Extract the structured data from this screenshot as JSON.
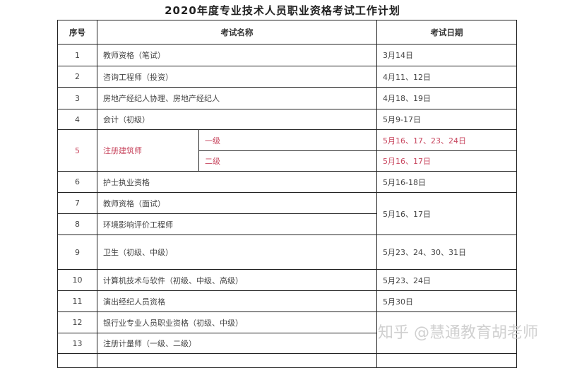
{
  "title": "2020年度专业技术人员职业资格考试工作计划",
  "headers": {
    "no": "序号",
    "name": "考试名称",
    "date": "考试日期"
  },
  "rows": [
    {
      "no": "1",
      "name": "教师资格（笔试）",
      "date": "3月14日"
    },
    {
      "no": "2",
      "name": "咨询工程师（投资）",
      "date": "4月11、12日"
    },
    {
      "no": "3",
      "name": "房地产经纪人协理、房地产经纪人",
      "date": "4月18、19日"
    },
    {
      "no": "4",
      "name": "会计（初级）",
      "date": "5月9-17日"
    },
    {
      "no": "5",
      "name": "注册建筑师",
      "sub": [
        {
          "level": "一级",
          "date": "5月16、17、23、24日"
        },
        {
          "level": "二级",
          "date": "5月16、17日"
        }
      ]
    },
    {
      "no": "6",
      "name": "护士执业资格",
      "date": "5月16-18日"
    },
    {
      "no": "7",
      "name": "教师资格（面试）",
      "date": "5月16、17日"
    },
    {
      "no": "8",
      "name": "环境影响评价工程师"
    },
    {
      "no": "9",
      "name": "卫生（初级、中级）",
      "date": "5月23、24、30、31日"
    },
    {
      "no": "10",
      "name": "计算机技术与软件（初级、中级、高级）",
      "date": "5月23、24日"
    },
    {
      "no": "11",
      "name": "演出经纪人员资格",
      "date": "5月30日"
    },
    {
      "no": "12",
      "name": "银行业专业人员职业资格（初级、中级）"
    },
    {
      "no": "13",
      "name": "注册计量师（一级、二级）"
    }
  ],
  "highlight_color": "#c8475f",
  "watermark": "知乎 @慧通教育胡老师"
}
